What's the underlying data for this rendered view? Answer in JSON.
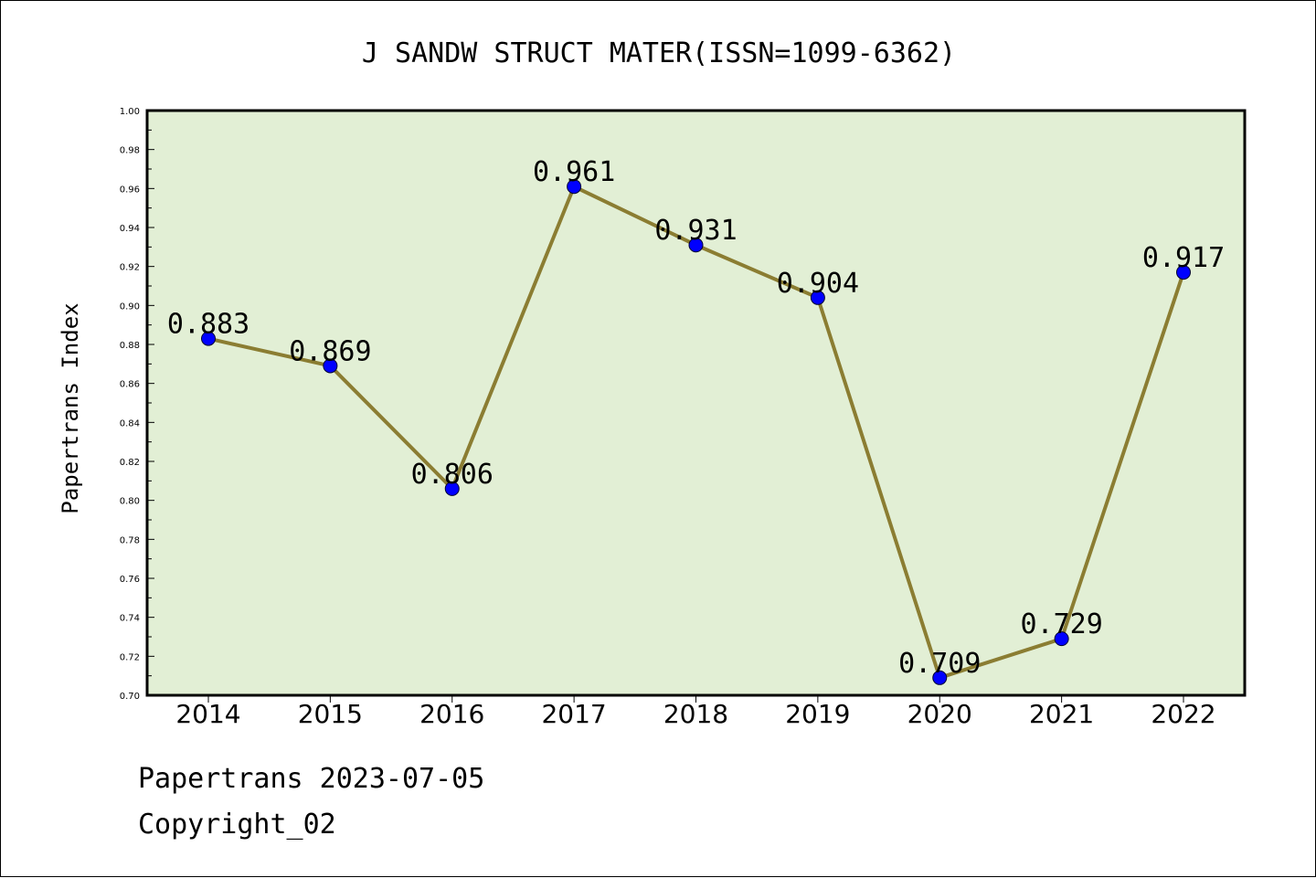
{
  "chart_data": {
    "type": "line",
    "title": "J SANDW STRUCT MATER(ISSN=1099-6362)",
    "xlabel": "",
    "ylabel": "Papertrans Index",
    "categories": [
      "2014",
      "2015",
      "2016",
      "2017",
      "2018",
      "2019",
      "2020",
      "2021",
      "2022"
    ],
    "series": [
      {
        "values": [
          0.883,
          0.869,
          0.806,
          0.961,
          0.931,
          0.904,
          0.709,
          0.729,
          0.917
        ],
        "labels": [
          "0.883",
          "0.869",
          "0.806",
          "0.961",
          "0.931",
          "0.904",
          "0.709",
          "0.729",
          "0.917"
        ],
        "line_color": "#8b7d32",
        "marker_color": "#0000ff"
      }
    ],
    "ylim": [
      0.7,
      1.0
    ],
    "yticks": [
      "0.70",
      "0.72",
      "0.74",
      "0.76",
      "0.78",
      "0.80",
      "0.82",
      "0.84",
      "0.86",
      "0.88",
      "0.90",
      "0.92",
      "0.94",
      "0.96",
      "0.98",
      "1.00"
    ],
    "plot_background": "#e2efd5",
    "grid": false,
    "legend": "none"
  },
  "footer": {
    "line1": "Papertrans 2023-07-05",
    "line2": "Copyright_02"
  }
}
